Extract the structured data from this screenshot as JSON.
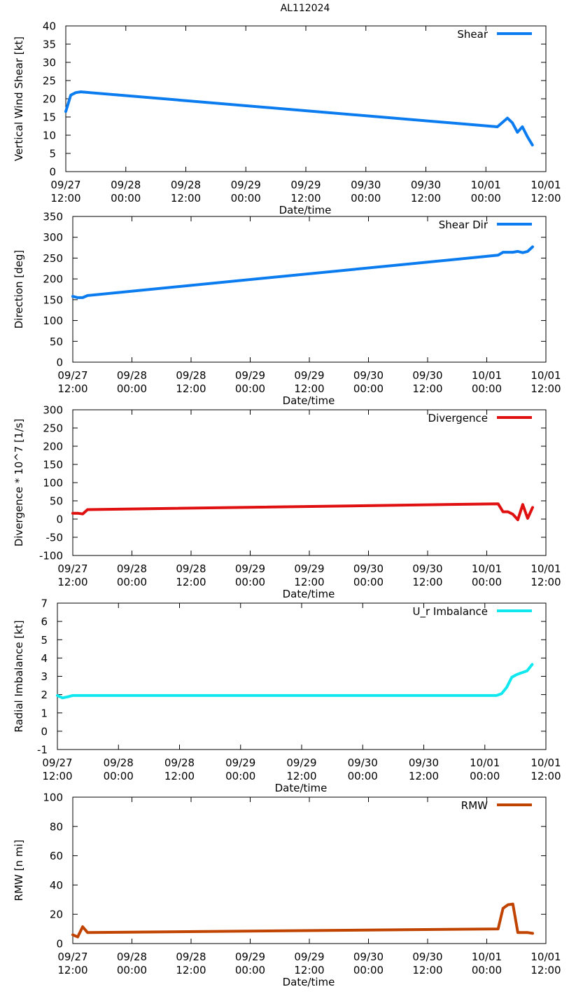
{
  "title": "AL112024",
  "x_tick_labels": [
    [
      "09/27",
      "12:00"
    ],
    [
      "09/28",
      "00:00"
    ],
    [
      "09/28",
      "12:00"
    ],
    [
      "09/29",
      "00:00"
    ],
    [
      "09/29",
      "12:00"
    ],
    [
      "09/30",
      "00:00"
    ],
    [
      "09/30",
      "12:00"
    ],
    [
      "10/01",
      "00:00"
    ],
    [
      "10/01",
      "12:00"
    ]
  ],
  "chart_data": [
    {
      "type": "line",
      "name": "shear",
      "ylabel": "Vertical Wind Shear [kt]",
      "xlabel": "Date/time",
      "xlim": [
        0,
        96
      ],
      "ylim": [
        0,
        40
      ],
      "yticks": [
        0,
        5,
        10,
        15,
        20,
        25,
        30,
        35,
        40
      ],
      "legend": "Shear",
      "color": "#0a7cf0",
      "x": [
        0,
        1,
        2,
        3,
        86.3,
        88.3,
        89.3,
        90.3,
        91.3,
        92.3,
        93.3
      ],
      "values": [
        16.5,
        21,
        21.7,
        21.9,
        12.3,
        14.7,
        13.4,
        10.8,
        12.3,
        9.6,
        7.3
      ]
    },
    {
      "type": "line",
      "name": "shear-dir",
      "ylabel": "Direction [deg]",
      "xlabel": "Date/time",
      "xlim": [
        0,
        96
      ],
      "ylim": [
        0,
        350
      ],
      "yticks": [
        0,
        50,
        100,
        150,
        200,
        250,
        300,
        350
      ],
      "legend": "Shear Dir",
      "color": "#0a7cf0",
      "x": [
        0,
        1,
        2,
        3,
        86.3,
        87.3,
        88.3,
        89.3,
        90.3,
        91.3,
        92.3,
        93.3
      ],
      "values": [
        158,
        155,
        155,
        160,
        257,
        264,
        264,
        264,
        266,
        263,
        266,
        277
      ]
    },
    {
      "type": "line",
      "name": "divergence",
      "ylabel": "Divergence * 10^7 [1/s]",
      "xlabel": "Date/time",
      "xlim": [
        0,
        96
      ],
      "ylim": [
        -100,
        300
      ],
      "yticks": [
        -100,
        -50,
        0,
        50,
        100,
        150,
        200,
        250,
        300
      ],
      "legend": "Divergence",
      "color": "#e01010",
      "x": [
        0,
        1,
        2,
        3,
        86.3,
        87.3,
        88.3,
        89.3,
        90.3,
        91.3,
        92.3,
        93.3
      ],
      "values": [
        16,
        16,
        14,
        26,
        42,
        20,
        20,
        13,
        -2,
        40,
        2,
        32
      ]
    },
    {
      "type": "line",
      "name": "radial-imbalance",
      "ylabel": "Radial Imbalance [kt]",
      "xlabel": "Date/time",
      "xlim": [
        0,
        96
      ],
      "ylim": [
        -1,
        7
      ],
      "yticks": [
        -1,
        0,
        1,
        2,
        3,
        4,
        5,
        6,
        7
      ],
      "legend": "U_r Imbalance",
      "color": "#10e8f0",
      "x": [
        0,
        1,
        2,
        3,
        86.3,
        87.3,
        88.3,
        89.3,
        90.3,
        91.3,
        92.3,
        93.3
      ],
      "values": [
        1.95,
        1.82,
        1.88,
        1.95,
        1.95,
        2.05,
        2.4,
        2.95,
        3.1,
        3.2,
        3.3,
        3.65
      ]
    },
    {
      "type": "line",
      "name": "rmw",
      "ylabel": "RMW [n mi]",
      "xlabel": "Date/time",
      "xlim": [
        0,
        96
      ],
      "ylim": [
        0,
        100
      ],
      "yticks": [
        0,
        20,
        40,
        60,
        80,
        100
      ],
      "legend": "RMW",
      "color": "#c04400",
      "x": [
        0,
        1,
        2,
        3,
        86.3,
        87.3,
        88.3,
        89.3,
        90.3,
        91.3,
        92.3,
        93.3
      ],
      "values": [
        6,
        4.5,
        11.5,
        7.5,
        10,
        24,
        26.5,
        27,
        7.5,
        7.5,
        7.5,
        7
      ]
    }
  ]
}
